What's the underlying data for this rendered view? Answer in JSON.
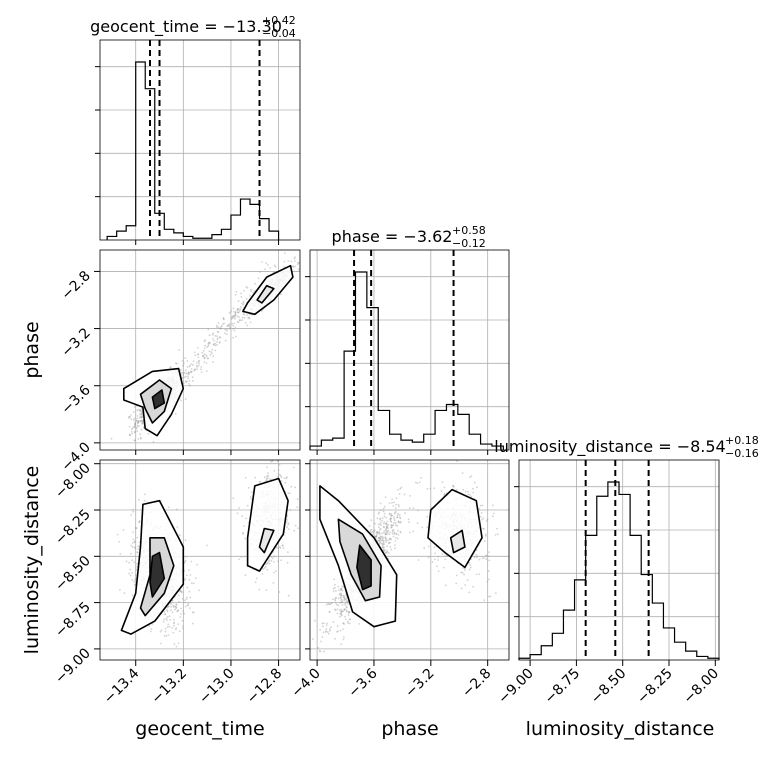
{
  "chart_data": {
    "type": "corner",
    "parameters": [
      {
        "name": "geocent_time",
        "range": [
          -13.55,
          -12.71
        ],
        "ticks": [
          -13.4,
          -13.2,
          -13.0,
          -12.8
        ],
        "tick_labels": [
          "−13.4",
          "−13.2",
          "−13.0",
          "−12.8"
        ],
        "title_prefix": "geocent_time = −13.30",
        "title_sup": "+0.42",
        "title_sub": "−0.04",
        "quantiles": [
          -13.34,
          -13.3,
          -12.88
        ],
        "hist_edges_start": -13.52,
        "hist_bin_width": 0.04,
        "hist_counts": [
          0.02,
          0.05,
          0.08,
          1.0,
          0.85,
          0.15,
          0.06,
          0.04,
          0.02,
          0.01,
          0.01,
          0.03,
          0.06,
          0.14,
          0.23,
          0.2,
          0.12,
          0.05
        ]
      },
      {
        "name": "phase",
        "range": [
          -4.05,
          -2.65
        ],
        "ticks": [
          -4.0,
          -3.6,
          -3.2,
          -2.8
        ],
        "tick_labels": [
          "−4.0",
          "−3.6",
          "−3.2",
          "−2.8"
        ],
        "title_prefix": "phase = −3.62",
        "title_sup": "+0.58",
        "title_sub": "−0.12",
        "quantiles": [
          -3.74,
          -3.62,
          -3.04
        ],
        "hist_edges_start": -4.05,
        "hist_bin_width": 0.08,
        "hist_counts": [
          0.02,
          0.05,
          0.06,
          0.5,
          0.9,
          0.72,
          0.2,
          0.08,
          0.05,
          0.04,
          0.08,
          0.2,
          0.23,
          0.18,
          0.08,
          0.03,
          0.02
        ]
      },
      {
        "name": "luminosity_distance",
        "range": [
          -9.06,
          -7.98
        ],
        "ticks": [
          -9.0,
          -8.75,
          -8.5,
          -8.25,
          -8.0
        ],
        "tick_labels": [
          "−9.00",
          "−8.75",
          "−8.50",
          "−8.25",
          "−8.00"
        ],
        "title_prefix": "luminosity_distance = −8.54",
        "title_sup": "+0.18",
        "title_sub": "−0.16",
        "quantiles": [
          -8.7,
          -8.54,
          -8.36
        ],
        "hist_edges_start": -9.06,
        "hist_bin_width": 0.06,
        "hist_counts": [
          0.01,
          0.03,
          0.08,
          0.15,
          0.28,
          0.45,
          0.7,
          0.92,
          1.0,
          0.93,
          0.7,
          0.48,
          0.32,
          0.18,
          0.1,
          0.05,
          0.02,
          0.01
        ]
      }
    ],
    "grid": true,
    "density_color": "#000000",
    "scatter_color": "#9e9e9e"
  }
}
